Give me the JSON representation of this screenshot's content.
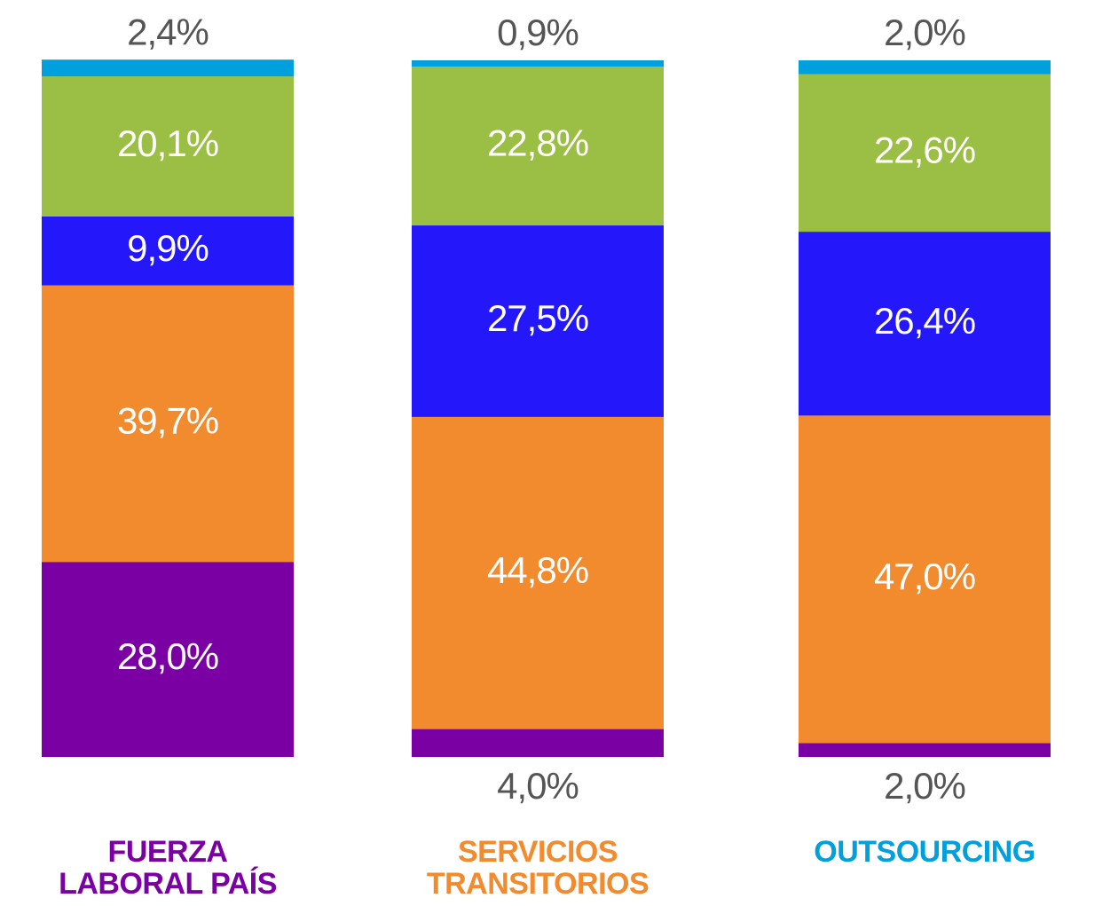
{
  "chart_data": {
    "type": "stacked_bar",
    "categories": [
      [
        "FUERZA",
        "LABORAL PAÍS"
      ],
      [
        "SERVICIOS",
        "TRANSITORIOS"
      ],
      [
        "OUTSOURCING"
      ]
    ],
    "category_colors": [
      "#7b00a3",
      "#f28a2e",
      "#00a0de"
    ],
    "series": [
      {
        "color": "#7b00a3",
        "values": [
          28.0,
          4.0,
          2.0
        ],
        "value_labels": [
          "28,0%",
          "4,0%",
          "2,0%"
        ]
      },
      {
        "color": "#f28a2e",
        "values": [
          39.7,
          44.8,
          47.0
        ],
        "value_labels": [
          "39,7%",
          "44,8%",
          "47,0%"
        ]
      },
      {
        "color": "#2418fa",
        "values": [
          9.9,
          27.5,
          26.4
        ],
        "value_labels": [
          "9,9%",
          "27,5%",
          "26,4%"
        ]
      },
      {
        "color": "#9bbe44",
        "values": [
          20.1,
          22.8,
          22.6
        ],
        "value_labels": [
          "20,1%",
          "22,8%",
          "22,6%"
        ]
      },
      {
        "color": "#00a0de",
        "values": [
          2.4,
          0.9,
          2.0
        ],
        "value_labels": [
          "2,4%",
          "0,9%",
          "2,0%"
        ]
      }
    ]
  }
}
